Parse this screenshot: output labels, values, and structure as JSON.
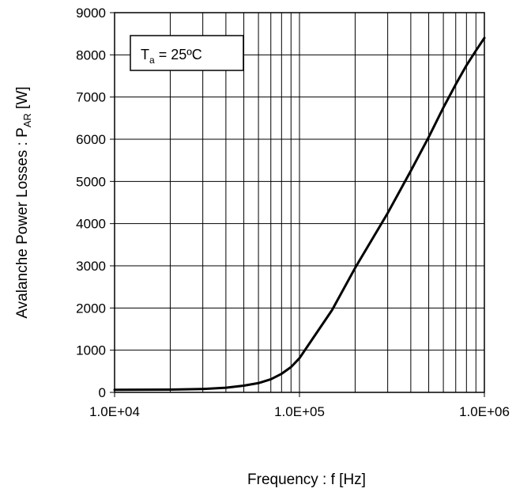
{
  "chart_data": {
    "type": "line",
    "xlabel": "Frequency : f [Hz]",
    "ylabel": {
      "prefix": "Avalanche Power Losses : P",
      "subscript": "AR",
      "suffix": " [W]"
    },
    "annotation": {
      "main": "T",
      "subscript": "a",
      "suffix": " = 25ºC"
    },
    "xscale": "log",
    "xlim": [
      10000,
      1000000
    ],
    "ylim": [
      0,
      9000
    ],
    "x_tick_values": [
      10000,
      100000,
      1000000
    ],
    "x_tick_labels": [
      "1.0E+04",
      "1.0E+05",
      "1.0E+06"
    ],
    "y_tick_labels": [
      "0",
      "1000",
      "2000",
      "3000",
      "4000",
      "5000",
      "6000",
      "7000",
      "8000",
      "9000"
    ],
    "grid": true,
    "series": [
      {
        "color": "#000000",
        "x": [
          10000,
          20000,
          30000,
          40000,
          50000,
          60000,
          70000,
          80000,
          90000,
          100000,
          150000,
          200000,
          300000,
          400000,
          500000,
          600000,
          700000,
          800000,
          900000,
          1000000
        ],
        "y": [
          60,
          65,
          80,
          110,
          160,
          220,
          310,
          440,
          600,
          810,
          1950,
          2950,
          4250,
          5250,
          6050,
          6750,
          7300,
          7750,
          8100,
          8400
        ]
      }
    ]
  }
}
